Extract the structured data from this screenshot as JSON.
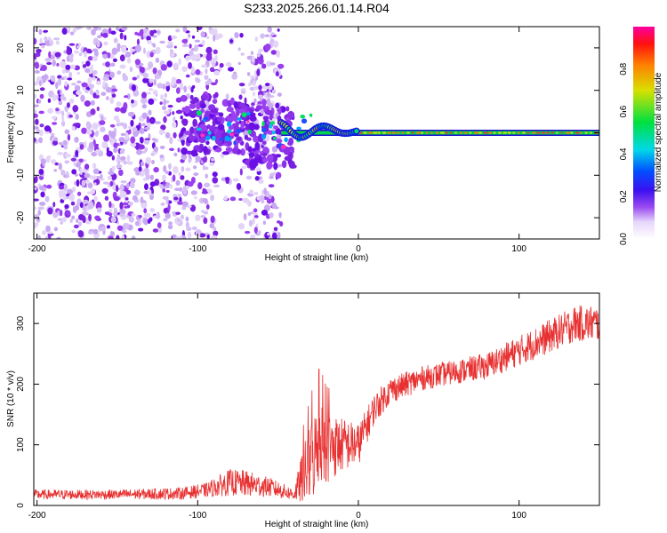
{
  "title": "S233.2025.266.01.14.R04",
  "chart_data": [
    {
      "type": "heatmap",
      "name": "spectrogram",
      "xlabel": "Height of straight line (km)",
      "ylabel": "Frequency (Hz)",
      "xlim": [
        -202,
        150
      ],
      "ylim": [
        -25,
        25
      ],
      "x_ticks": [
        -200,
        -100,
        0,
        100
      ],
      "x_tick_labels": [
        "-200",
        "-100",
        "0",
        "100"
      ],
      "y_ticks": [
        -20,
        -10,
        0,
        10,
        20
      ],
      "y_tick_labels": [
        "-20",
        "-10",
        "0",
        "10",
        "20"
      ],
      "features": {
        "noise_region_x": [
          -202,
          -48
        ],
        "noise_gap_x": [
          -88,
          -68
        ],
        "carrier_start_x": -48,
        "carrier_frequency_hz": 0,
        "carrier_ripple_region_x": [
          -48,
          0
        ],
        "carrier_ripple_amplitude_hz": 2
      },
      "colorbar": {
        "label": "Normalized spectral amplitude",
        "range": [
          0,
          1
        ],
        "ticks": [
          0.0,
          0.2,
          0.4,
          0.6,
          0.8
        ],
        "tick_labels": [
          "0.0",
          "0.2",
          "0.4",
          "0.6",
          "0.8"
        ],
        "colors": [
          "#ffffff",
          "#d8c2f5",
          "#8a2be2",
          "#2020ff",
          "#00d0e0",
          "#00e050",
          "#d0e000",
          "#ff2020",
          "#ff00a0"
        ]
      }
    },
    {
      "type": "line",
      "name": "snr",
      "xlabel": "Height of straight line (km)",
      "ylabel": "SNR (10 * v/v)",
      "xlim": [
        -202,
        150
      ],
      "ylim": [
        0,
        350
      ],
      "x_ticks": [
        -200,
        -100,
        0,
        100
      ],
      "x_tick_labels": [
        "-200",
        "-100",
        "0",
        "100"
      ],
      "y_ticks": [
        0,
        100,
        200,
        300
      ],
      "y_tick_labels": [
        "0",
        "100",
        "200",
        "300"
      ],
      "color": "#e83030",
      "series_profile": {
        "x": [
          -202,
          -150,
          -110,
          -95,
          -80,
          -70,
          -55,
          -40,
          -34,
          -28,
          -24,
          -20,
          -10,
          0,
          10,
          20,
          40,
          60,
          80,
          100,
          120,
          135,
          150
        ],
        "mean": [
          18,
          18,
          20,
          25,
          38,
          36,
          30,
          18,
          50,
          80,
          110,
          95,
          100,
          100,
          160,
          190,
          210,
          220,
          230,
          255,
          280,
          300,
          300
        ],
        "spread": [
          8,
          8,
          10,
          12,
          22,
          22,
          16,
          10,
          50,
          70,
          70,
          60,
          45,
          35,
          25,
          22,
          20,
          20,
          22,
          25,
          28,
          30,
          30
        ]
      }
    }
  ]
}
